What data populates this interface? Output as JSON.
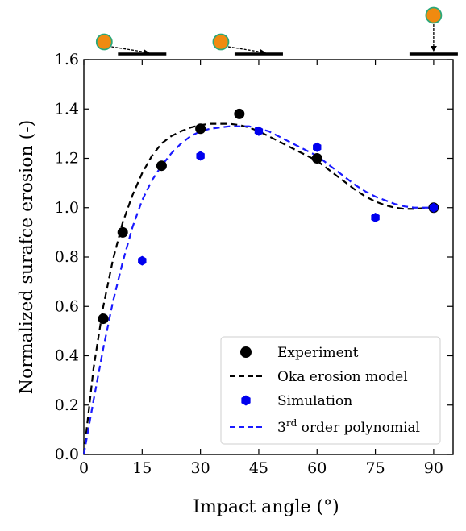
{
  "chart_data": {
    "type": "scatter",
    "xlabel": "Impact angle (°)",
    "ylabel": "Normalized surafce erosion (-)",
    "xlim": [
      0,
      95
    ],
    "ylim": [
      0.0,
      1.6
    ],
    "xticks": [
      0,
      15,
      30,
      45,
      60,
      75,
      90
    ],
    "yticks": [
      0.0,
      0.2,
      0.4,
      0.6,
      0.8,
      1.0,
      1.2,
      1.4,
      1.6
    ],
    "xtick_labels": [
      "0",
      "15",
      "30",
      "45",
      "60",
      "75",
      "90"
    ],
    "ytick_labels": [
      "0.0",
      "0.2",
      "0.4",
      "0.6",
      "0.8",
      "1.0",
      "1.2",
      "1.4",
      "1.6"
    ],
    "grid": false,
    "legend_position": "lower-right",
    "series": [
      {
        "name": "Experiment",
        "kind": "scatter",
        "marker": "circle",
        "color": "#000000",
        "x": [
          5,
          10,
          20,
          30,
          40,
          60,
          90
        ],
        "y": [
          0.55,
          0.9,
          1.17,
          1.32,
          1.38,
          1.2,
          1.0
        ]
      },
      {
        "name": "Oka erosion model",
        "kind": "line",
        "style": "dashed",
        "color": "#000000",
        "x": [
          0,
          2.5,
          5,
          7.5,
          10,
          12.5,
          15,
          17.5,
          20,
          22.5,
          25,
          27.5,
          30,
          32.5,
          35,
          37.5,
          40,
          42.5,
          45,
          47.5,
          50,
          52.5,
          55,
          57.5,
          60,
          62.5,
          65,
          67.5,
          70,
          72.5,
          75,
          77.5,
          80,
          82.5,
          85,
          87.5,
          90
        ],
        "y": [
          0.0,
          0.35,
          0.6,
          0.79,
          0.94,
          1.05,
          1.14,
          1.21,
          1.26,
          1.29,
          1.31,
          1.325,
          1.335,
          1.34,
          1.34,
          1.34,
          1.335,
          1.325,
          1.31,
          1.29,
          1.27,
          1.25,
          1.23,
          1.21,
          1.19,
          1.16,
          1.13,
          1.1,
          1.07,
          1.045,
          1.025,
          1.01,
          1.0,
          0.995,
          0.995,
          0.998,
          1.0
        ]
      },
      {
        "name": "Simulation",
        "kind": "scatter",
        "marker": "hexagon",
        "color": "#0000ee",
        "x": [
          15,
          30,
          45,
          60,
          75,
          90
        ],
        "y": [
          0.785,
          1.21,
          1.31,
          1.245,
          0.96,
          1.0
        ]
      },
      {
        "name": "3rd order polynomial",
        "kind": "line",
        "style": "dashed",
        "color": "#1a1aff",
        "x": [
          0,
          2.5,
          5,
          7.5,
          10,
          12.5,
          15,
          17.5,
          20,
          22.5,
          25,
          27.5,
          30,
          32.5,
          35,
          37.5,
          40,
          42.5,
          45,
          47.5,
          50,
          52.5,
          55,
          57.5,
          60,
          62.5,
          65,
          67.5,
          70,
          72.5,
          75,
          77.5,
          80,
          82.5,
          85,
          87.5,
          90
        ],
        "y": [
          0.0,
          0.22,
          0.43,
          0.62,
          0.78,
          0.92,
          1.03,
          1.11,
          1.17,
          1.22,
          1.26,
          1.29,
          1.31,
          1.32,
          1.325,
          1.33,
          1.33,
          1.33,
          1.32,
          1.31,
          1.29,
          1.27,
          1.25,
          1.23,
          1.21,
          1.18,
          1.15,
          1.12,
          1.09,
          1.065,
          1.045,
          1.03,
          1.015,
          1.005,
          1.0,
          1.0,
          1.0
        ]
      }
    ],
    "legend": {
      "entries": [
        {
          "label": "Experiment",
          "symbol": "circle",
          "color": "#000000"
        },
        {
          "label": "Oka erosion model",
          "symbol": "dashed-line",
          "color": "#000000"
        },
        {
          "label": "Simulation",
          "symbol": "hexagon",
          "color": "#0000ee"
        },
        {
          "label_main": "3",
          "label_sup": "rd",
          "label_rest": " order polynomial",
          "symbol": "dashed-line",
          "color": "#1a1aff"
        }
      ]
    },
    "impact_icons": [
      {
        "angle": 15,
        "icon": "oblique-impact-icon"
      },
      {
        "angle": 45,
        "icon": "oblique-impact-icon"
      },
      {
        "angle": 90,
        "icon": "normal-impact-icon"
      }
    ],
    "colors": {
      "particle_fill": "#f08a10",
      "particle_edge": "#2aa87a"
    }
  }
}
